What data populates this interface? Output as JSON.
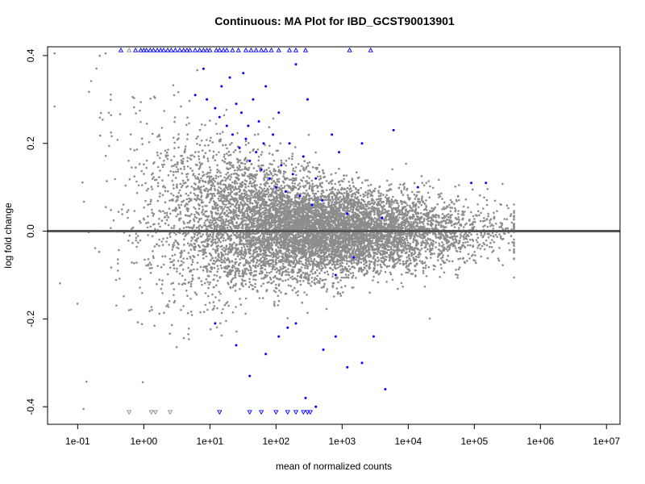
{
  "chart_data": {
    "type": "scatter",
    "title": "Continuous: MA Plot for IBD_GCST90013901",
    "xlabel": "mean of normalized counts",
    "ylabel": "log fold change",
    "x_scale": "log10",
    "xlim": [
      0.035,
      16000000
    ],
    "ylim": [
      -0.44,
      0.42
    ],
    "x_ticks": [
      0.1,
      1,
      10,
      100,
      1000,
      10000,
      100000,
      1000000,
      10000000
    ],
    "x_tick_labels": [
      "1e-01",
      "1e+00",
      "1e+01",
      "1e+02",
      "1e+03",
      "1e+04",
      "1e+05",
      "1e+06",
      "1e+07"
    ],
    "y_ticks": [
      -0.4,
      -0.2,
      0.0,
      0.2,
      0.4
    ],
    "y_tick_labels": [
      "-0.4",
      "-0.2",
      "0.0",
      "0.2",
      "0.4"
    ],
    "hline": 0,
    "colors": {
      "non_significant": "#8c8c8c",
      "significant": "#0000ff",
      "hline": "#555555"
    },
    "clip_markers": {
      "upper": "open-triangle-up",
      "lower": "open-triangle-down"
    },
    "series": [
      {
        "name": "",
        "color": "#0000ff",
        "points": [
          [
            6,
            0.31
          ],
          [
            8,
            0.37
          ],
          [
            9,
            0.3
          ],
          [
            12,
            0.28
          ],
          [
            14,
            0.26
          ],
          [
            15,
            0.33
          ],
          [
            18,
            0.24
          ],
          [
            20,
            0.35
          ],
          [
            22,
            0.22
          ],
          [
            25,
            0.29
          ],
          [
            28,
            0.19
          ],
          [
            30,
            0.27
          ],
          [
            32,
            0.36
          ],
          [
            35,
            0.21
          ],
          [
            38,
            0.24
          ],
          [
            40,
            0.16
          ],
          [
            45,
            0.3
          ],
          [
            50,
            0.18
          ],
          [
            55,
            0.25
          ],
          [
            60,
            0.14
          ],
          [
            65,
            0.2
          ],
          [
            70,
            0.33
          ],
          [
            80,
            0.12
          ],
          [
            90,
            0.22
          ],
          [
            100,
            0.1
          ],
          [
            110,
            0.27
          ],
          [
            120,
            0.15
          ],
          [
            140,
            0.09
          ],
          [
            160,
            0.2
          ],
          [
            180,
            0.13
          ],
          [
            200,
            0.38
          ],
          [
            230,
            0.08
          ],
          [
            260,
            0.17
          ],
          [
            300,
            0.3
          ],
          [
            350,
            0.06
          ],
          [
            400,
            0.12
          ],
          [
            500,
            0.07
          ],
          [
            700,
            0.22
          ],
          [
            900,
            0.18
          ],
          [
            1200,
            0.04
          ],
          [
            2000,
            0.2
          ],
          [
            4000,
            0.03
          ],
          [
            6000,
            0.23
          ],
          [
            14000,
            0.1
          ],
          [
            90000,
            0.11
          ],
          [
            150000,
            0.11
          ],
          [
            12,
            -0.21
          ],
          [
            25,
            -0.26
          ],
          [
            40,
            -0.33
          ],
          [
            70,
            -0.28
          ],
          [
            110,
            -0.24
          ],
          [
            150,
            -0.22
          ],
          [
            200,
            -0.21
          ],
          [
            280,
            -0.38
          ],
          [
            400,
            -0.4
          ],
          [
            520,
            -0.27
          ],
          [
            800,
            -0.24
          ],
          [
            1200,
            -0.31
          ],
          [
            2000,
            -0.3
          ],
          [
            3000,
            -0.24
          ],
          [
            4500,
            -0.36
          ],
          [
            800,
            -0.1
          ],
          [
            1500,
            -0.06
          ]
        ]
      }
    ],
    "nonsig_points": 9000,
    "upper_clipped": [
      [
        0.45,
        "sig"
      ],
      [
        0.6,
        "ns"
      ],
      [
        0.75,
        "sig"
      ],
      [
        0.9,
        "sig"
      ],
      [
        1.0,
        "sig"
      ],
      [
        1.1,
        "sig"
      ],
      [
        1.25,
        "sig"
      ],
      [
        1.4,
        "sig"
      ],
      [
        1.6,
        "sig"
      ],
      [
        1.8,
        "sig"
      ],
      [
        2.0,
        "sig"
      ],
      [
        2.3,
        "sig"
      ],
      [
        2.6,
        "sig"
      ],
      [
        3.0,
        "sig"
      ],
      [
        3.5,
        "sig"
      ],
      [
        4.0,
        "sig"
      ],
      [
        4.5,
        "sig"
      ],
      [
        5.0,
        "sig"
      ],
      [
        6.0,
        "sig"
      ],
      [
        7.0,
        "sig"
      ],
      [
        8.0,
        "sig"
      ],
      [
        9.0,
        "sig"
      ],
      [
        10.0,
        "sig"
      ],
      [
        12.5,
        "sig"
      ],
      [
        14.0,
        "sig"
      ],
      [
        16.0,
        "sig"
      ],
      [
        18.0,
        "sig"
      ],
      [
        22.0,
        "sig"
      ],
      [
        27.0,
        "sig"
      ],
      [
        35.0,
        "sig"
      ],
      [
        42.0,
        "sig"
      ],
      [
        50.0,
        "sig"
      ],
      [
        60.0,
        "sig"
      ],
      [
        70.0,
        "sig"
      ],
      [
        85.0,
        "sig"
      ],
      [
        110.0,
        "sig"
      ],
      [
        160.0,
        "sig"
      ],
      [
        200.0,
        "sig"
      ],
      [
        280.0,
        "sig"
      ],
      [
        1300.0,
        "sig"
      ],
      [
        2700.0,
        "sig"
      ]
    ],
    "lower_clipped": [
      [
        0.6,
        "ns"
      ],
      [
        1.3,
        "ns"
      ],
      [
        1.5,
        "ns"
      ],
      [
        2.5,
        "ns"
      ],
      [
        14.0,
        "sig"
      ],
      [
        40.0,
        "sig"
      ],
      [
        60.0,
        "sig"
      ],
      [
        100.0,
        "sig"
      ],
      [
        150.0,
        "sig"
      ],
      [
        200.0,
        "sig"
      ],
      [
        260.0,
        "sig"
      ],
      [
        300.0,
        "sig"
      ],
      [
        330.0,
        "sig"
      ]
    ]
  }
}
